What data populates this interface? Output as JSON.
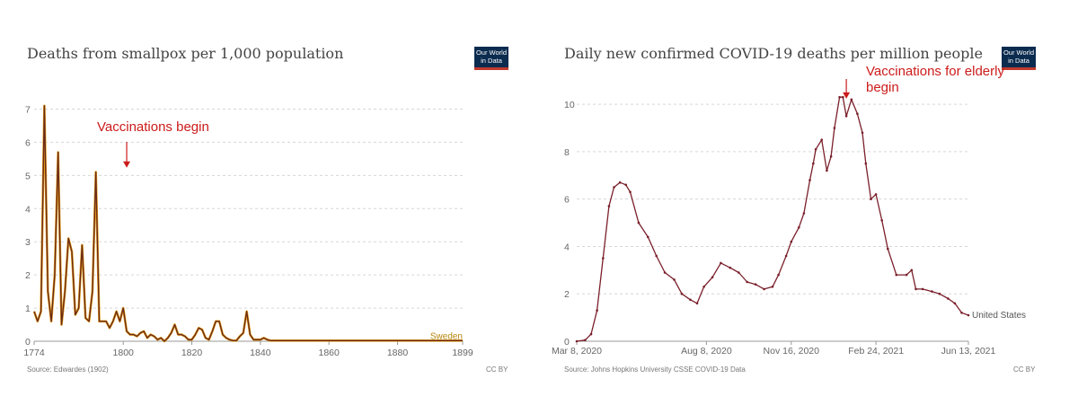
{
  "chart_data": [
    {
      "type": "line",
      "title": "Deaths from smallpox per 1,000 population",
      "logo_text": [
        "Our World",
        "in Data"
      ],
      "source": "Source: Edwardes (1902)",
      "license": "CC BY",
      "xlim": [
        1774,
        1899
      ],
      "ylim": [
        0,
        7.5
      ],
      "x_ticks": [
        "1774",
        "1800",
        "1820",
        "1840",
        "1860",
        "1880",
        "1899"
      ],
      "x_tick_values": [
        1774,
        1800,
        1820,
        1840,
        1860,
        1880,
        1899
      ],
      "y_ticks": [
        0,
        1,
        2,
        3,
        4,
        5,
        6,
        7
      ],
      "grid": true,
      "series": [
        {
          "name": "Sweden",
          "color": "#e8a317",
          "x": [
            1774,
            1775,
            1776,
            1777,
            1778,
            1779,
            1780,
            1781,
            1782,
            1783,
            1784,
            1785,
            1786,
            1787,
            1788,
            1789,
            1790,
            1791,
            1792,
            1793,
            1794,
            1795,
            1796,
            1797,
            1798,
            1799,
            1800,
            1801,
            1802,
            1803,
            1804,
            1805,
            1806,
            1807,
            1808,
            1809,
            1810,
            1811,
            1812,
            1813,
            1814,
            1815,
            1816,
            1817,
            1818,
            1819,
            1820,
            1821,
            1822,
            1823,
            1824,
            1825,
            1826,
            1827,
            1828,
            1829,
            1830,
            1831,
            1832,
            1833,
            1834,
            1835,
            1836,
            1837,
            1838,
            1839,
            1840,
            1841,
            1842,
            1843,
            1870,
            1871,
            1872,
            1873,
            1874,
            1875,
            1876,
            1877,
            1878,
            1879,
            1880,
            1881,
            1882,
            1883,
            1884,
            1885,
            1886,
            1887,
            1888,
            1889,
            1890,
            1891,
            1892,
            1893,
            1894,
            1895,
            1896,
            1897,
            1898,
            1899
          ],
          "y": [
            0.9,
            0.6,
            0.9,
            7.1,
            1.5,
            0.6,
            2.0,
            5.7,
            0.5,
            1.5,
            3.1,
            2.7,
            0.8,
            1.0,
            2.9,
            0.7,
            0.6,
            1.5,
            5.1,
            0.6,
            0.6,
            0.6,
            0.4,
            0.6,
            0.9,
            0.6,
            1.0,
            0.3,
            0.2,
            0.2,
            0.15,
            0.25,
            0.3,
            0.1,
            0.2,
            0.15,
            0.05,
            0.1,
            0.0,
            0.1,
            0.25,
            0.5,
            0.2,
            0.2,
            0.15,
            0.05,
            0.05,
            0.2,
            0.4,
            0.35,
            0.1,
            0.05,
            0.3,
            0.6,
            0.6,
            0.2,
            0.1,
            0.05,
            0.02,
            0.02,
            0.15,
            0.25,
            0.9,
            0.2,
            0.05,
            0.05,
            0.05,
            0.1,
            0.05,
            0.02,
            0.02,
            0.02,
            0.02,
            0.02,
            0.02,
            0.02,
            0.02,
            0.02,
            0.02,
            0.02,
            0.02,
            0.02,
            0.02,
            0.02,
            0.02,
            0.02,
            0.02,
            0.02,
            0.02,
            0.02,
            0.02,
            0.02,
            0.02,
            0.02,
            0.02,
            0.02,
            0.02,
            0.02,
            0.02,
            0.02
          ]
        }
      ],
      "annotation": {
        "text": "Vaccinations begin",
        "x": 1801,
        "y": 5.15
      }
    },
    {
      "type": "line",
      "title": "Daily new confirmed COVID-19 deaths per million people",
      "logo_text": [
        "Our World",
        "in Data"
      ],
      "source": "Source: Johns Hopkins University CSSE COVID-19 Data",
      "license": "CC BY",
      "xlim": [
        "2020-03-08",
        "2021-06-13"
      ],
      "ylim": [
        0,
        10.8
      ],
      "x_ticks": [
        "Mar 8, 2020",
        "Aug 8, 2020",
        "Nov 16, 2020",
        "Feb 24, 2021",
        "Jun 13, 2021"
      ],
      "x_tick_values": [
        "2020-03-08",
        "2020-08-08",
        "2020-11-16",
        "2021-02-24",
        "2021-06-13"
      ],
      "y_ticks": [
        0,
        2,
        4,
        6,
        8,
        10
      ],
      "grid": true,
      "series": [
        {
          "name": "United States",
          "color": "#7a1f2a",
          "x": [
            "2020-03-08",
            "2020-03-18",
            "2020-03-25",
            "2020-04-01",
            "2020-04-08",
            "2020-04-15",
            "2020-04-21",
            "2020-04-28",
            "2020-05-05",
            "2020-05-10",
            "2020-05-20",
            "2020-05-31",
            "2020-06-10",
            "2020-06-20",
            "2020-07-01",
            "2020-07-10",
            "2020-07-20",
            "2020-07-28",
            "2020-08-05",
            "2020-08-15",
            "2020-08-25",
            "2020-09-05",
            "2020-09-15",
            "2020-09-25",
            "2020-10-05",
            "2020-10-15",
            "2020-10-25",
            "2020-11-01",
            "2020-11-10",
            "2020-11-16",
            "2020-11-25",
            "2020-12-01",
            "2020-12-08",
            "2020-12-12",
            "2020-12-15",
            "2020-12-22",
            "2020-12-28",
            "2021-01-02",
            "2021-01-06",
            "2021-01-12",
            "2021-01-16",
            "2021-01-20",
            "2021-01-26",
            "2021-02-02",
            "2021-02-08",
            "2021-02-12",
            "2021-02-18",
            "2021-02-24",
            "2021-03-03",
            "2021-03-10",
            "2021-03-20",
            "2021-04-01",
            "2021-04-07",
            "2021-04-12",
            "2021-04-20",
            "2021-05-01",
            "2021-05-10",
            "2021-05-20",
            "2021-05-28",
            "2021-06-05",
            "2021-06-13"
          ],
          "y": [
            0.0,
            0.05,
            0.3,
            1.3,
            3.5,
            5.7,
            6.5,
            6.7,
            6.6,
            6.3,
            5.0,
            4.4,
            3.6,
            2.9,
            2.6,
            2.0,
            1.75,
            1.6,
            2.3,
            2.7,
            3.3,
            3.1,
            2.9,
            2.5,
            2.4,
            2.2,
            2.3,
            2.8,
            3.6,
            4.2,
            4.8,
            5.4,
            6.8,
            7.5,
            8.1,
            8.5,
            7.2,
            7.8,
            9.0,
            10.3,
            10.3,
            9.5,
            10.2,
            9.6,
            8.8,
            7.5,
            6.0,
            6.2,
            5.1,
            3.9,
            2.8,
            2.8,
            3.0,
            2.2,
            2.2,
            2.1,
            2.0,
            1.8,
            1.6,
            1.2,
            1.1
          ]
        }
      ],
      "annotation": {
        "text_lines": [
          "Vaccinations for elderly",
          "begin"
        ],
        "x": "2021-01-20",
        "y": 10.2
      }
    }
  ]
}
